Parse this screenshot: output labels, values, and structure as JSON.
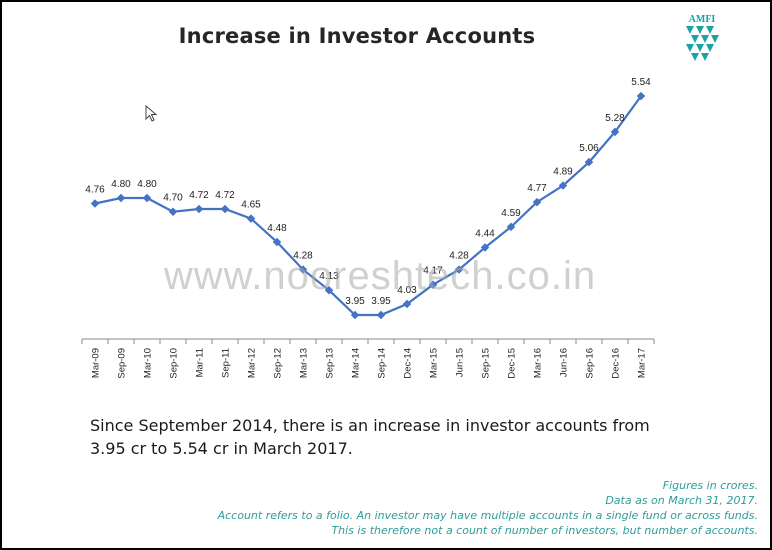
{
  "slide": {
    "title": "Increase in Investor Accounts",
    "logo_text": "AMFI",
    "watermark": "www.nooreshtech.co.in",
    "summary": "Since September 2014, there is an increase in investor accounts from 3.95 cr to 5.54 cr in March 2017.",
    "footnotes": [
      "Figures in crores.",
      "Data as on March 31, 2017.",
      "Account refers to a folio. An investor may have multiple accounts in a single fund or across funds.",
      "This is therefore not a count of number of investors, but number of accounts."
    ],
    "colors": {
      "line": "#4472c4",
      "footnote": "#2e9c9c",
      "logo": "#1aa3a3"
    }
  },
  "chart_data": {
    "type": "line",
    "title": "",
    "xlabel": "",
    "ylabel": "",
    "categories": [
      "Mar-09",
      "Sep-09",
      "Mar-10",
      "Sep-10",
      "Mar-11",
      "Sep-11",
      "Mar-12",
      "Sep-12",
      "Mar-13",
      "Sep-13",
      "Mar-14",
      "Sep-14",
      "Dec-14",
      "Mar-15",
      "Jun-15",
      "Sep-15",
      "Dec-15",
      "Mar-16",
      "Jun-16",
      "Sep-16",
      "Dec-16",
      "Mar-17"
    ],
    "values": [
      4.76,
      4.8,
      4.8,
      4.7,
      4.72,
      4.72,
      4.65,
      4.48,
      4.28,
      4.13,
      3.95,
      3.95,
      4.03,
      4.17,
      4.28,
      4.44,
      4.59,
      4.77,
      4.89,
      5.06,
      5.28,
      5.54
    ],
    "data_labels": [
      "4.76",
      "4.80",
      "4.80",
      "4.70",
      "4.72",
      "4.72",
      "4.65",
      "4.48",
      "4.28",
      "4.13",
      "3.95",
      "3.95",
      "4.03",
      "4.17",
      "4.28",
      "4.44",
      "4.59",
      "4.77",
      "4.89",
      "5.06",
      "5.28",
      "5.54"
    ],
    "ylim": [
      3.5,
      5.8
    ],
    "grid": false,
    "legend": "none",
    "color": "#4472c4"
  }
}
